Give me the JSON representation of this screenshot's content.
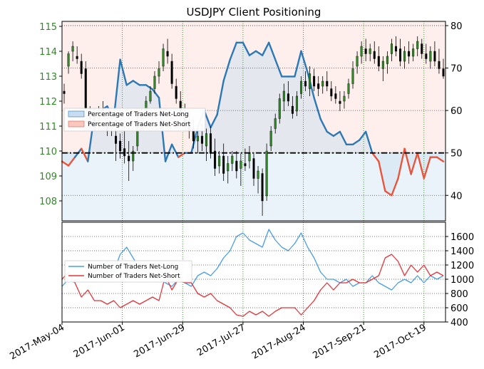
{
  "chart_data": [
    {
      "type": "line",
      "title": "USDJPY Client Positioning",
      "x_tick_labels": [
        "2017-May-04",
        "2017-Jun-01",
        "2017-Jun-29",
        "2017-Jul-27",
        "2017-Aug-24",
        "2017-Sep-21",
        "2017-Oct-19"
      ],
      "left_axis": {
        "ylim": [
          107.2,
          115.2
        ],
        "ticks": [
          108,
          109,
          110,
          111,
          112,
          113,
          114,
          115
        ],
        "color": "#2e8b22"
      },
      "right_axis": {
        "ylim": [
          34,
          81
        ],
        "ticks": [
          40,
          50,
          60,
          70,
          80
        ]
      },
      "reference_line": 50,
      "legend": {
        "placement": "center-left",
        "entries": [
          "Percentage of Traders Net-Long",
          "Percentage of Traders Net-Short"
        ]
      },
      "series_colors": {
        "net_long": "#2b78b5",
        "net_short": "#e8553b",
        "candle": "#000000"
      },
      "x": [
        0,
        3,
        6,
        9,
        12,
        15,
        18,
        21,
        24,
        27,
        30,
        33,
        36,
        39,
        42,
        45,
        48,
        51,
        54,
        57,
        60,
        63,
        66,
        69,
        72,
        75,
        78,
        81,
        84,
        87,
        90,
        93,
        96,
        99,
        102,
        105,
        108,
        111,
        114,
        117,
        120,
        123,
        126,
        129,
        132,
        135,
        138,
        141,
        144,
        147,
        150,
        153,
        156,
        159,
        162,
        165,
        168,
        171,
        174,
        177
      ],
      "percent_net_long": [
        48,
        47,
        49,
        51,
        48,
        59,
        60,
        61,
        58,
        72,
        66,
        67,
        66,
        66,
        65,
        63,
        48,
        52,
        49,
        50,
        50,
        56,
        60,
        56,
        59,
        67,
        72,
        76,
        76,
        73,
        74,
        73,
        76,
        72,
        68,
        68,
        68,
        74,
        69,
        63,
        58,
        55,
        54,
        55,
        52,
        52,
        53,
        55,
        50,
        48,
        41,
        40,
        44,
        51,
        45,
        50,
        44,
        49,
        49,
        48
      ],
      "candles": [
        {
          "x": 1,
          "o": 112.4,
          "h": 112.7,
          "l": 111.9,
          "c": 112.3
        },
        {
          "x": 3,
          "o": 113.4,
          "h": 114.0,
          "l": 113.1,
          "c": 113.9
        },
        {
          "x": 5,
          "o": 114.0,
          "h": 114.4,
          "l": 113.6,
          "c": 114.2
        },
        {
          "x": 7,
          "o": 113.8,
          "h": 114.2,
          "l": 113.5,
          "c": 113.7
        },
        {
          "x": 9,
          "o": 113.6,
          "h": 113.9,
          "l": 112.9,
          "c": 113.1
        },
        {
          "x": 11,
          "o": 113.3,
          "h": 113.6,
          "l": 111.6,
          "c": 111.7
        },
        {
          "x": 13,
          "o": 111.4,
          "h": 111.8,
          "l": 110.9,
          "c": 111.3
        },
        {
          "x": 15,
          "o": 111.3,
          "h": 111.7,
          "l": 110.8,
          "c": 111.0
        },
        {
          "x": 17,
          "o": 111.2,
          "h": 111.8,
          "l": 110.9,
          "c": 111.6
        },
        {
          "x": 19,
          "o": 111.7,
          "h": 112.0,
          "l": 111.4,
          "c": 111.6
        },
        {
          "x": 21,
          "o": 111.0,
          "h": 111.5,
          "l": 110.6,
          "c": 110.8
        },
        {
          "x": 23,
          "o": 110.9,
          "h": 111.4,
          "l": 110.6,
          "c": 111.0
        },
        {
          "x": 25,
          "o": 110.6,
          "h": 110.9,
          "l": 109.6,
          "c": 110.3
        },
        {
          "x": 27,
          "o": 110.4,
          "h": 110.7,
          "l": 109.7,
          "c": 110.0
        },
        {
          "x": 29,
          "o": 110.1,
          "h": 110.9,
          "l": 109.5,
          "c": 109.8
        },
        {
          "x": 31,
          "o": 109.8,
          "h": 110.4,
          "l": 108.8,
          "c": 109.6
        },
        {
          "x": 33,
          "o": 109.6,
          "h": 110.2,
          "l": 109.2,
          "c": 110.0
        },
        {
          "x": 35,
          "o": 110.2,
          "h": 111.5,
          "l": 110.0,
          "c": 111.2
        },
        {
          "x": 37,
          "o": 111.3,
          "h": 111.7,
          "l": 110.9,
          "c": 111.4
        },
        {
          "x": 39,
          "o": 111.5,
          "h": 112.2,
          "l": 111.3,
          "c": 112.0
        },
        {
          "x": 41,
          "o": 112.0,
          "h": 112.6,
          "l": 111.9,
          "c": 112.4
        },
        {
          "x": 43,
          "o": 112.5,
          "h": 113.2,
          "l": 112.3,
          "c": 113.0
        },
        {
          "x": 45,
          "o": 113.0,
          "h": 113.6,
          "l": 112.7,
          "c": 113.3
        },
        {
          "x": 47,
          "o": 113.4,
          "h": 114.3,
          "l": 113.2,
          "c": 114.1
        },
        {
          "x": 49,
          "o": 114.0,
          "h": 114.5,
          "l": 113.5,
          "c": 113.8
        },
        {
          "x": 51,
          "o": 113.6,
          "h": 113.9,
          "l": 112.5,
          "c": 112.7
        },
        {
          "x": 53,
          "o": 112.6,
          "h": 112.9,
          "l": 111.9,
          "c": 112.1
        },
        {
          "x": 55,
          "o": 112.0,
          "h": 112.4,
          "l": 111.2,
          "c": 111.4
        },
        {
          "x": 57,
          "o": 111.5,
          "h": 111.9,
          "l": 110.8,
          "c": 111.0
        },
        {
          "x": 59,
          "o": 111.1,
          "h": 111.6,
          "l": 110.5,
          "c": 110.8
        },
        {
          "x": 61,
          "o": 110.9,
          "h": 111.3,
          "l": 110.1,
          "c": 110.4
        },
        {
          "x": 63,
          "o": 110.4,
          "h": 110.9,
          "l": 109.9,
          "c": 110.6
        },
        {
          "x": 65,
          "o": 110.6,
          "h": 111.1,
          "l": 110.0,
          "c": 110.3
        },
        {
          "x": 67,
          "o": 110.2,
          "h": 110.9,
          "l": 109.6,
          "c": 110.7
        },
        {
          "x": 69,
          "o": 110.7,
          "h": 111.0,
          "l": 109.7,
          "c": 109.9
        },
        {
          "x": 71,
          "o": 110.0,
          "h": 110.5,
          "l": 109.0,
          "c": 109.3
        },
        {
          "x": 73,
          "o": 109.4,
          "h": 110.0,
          "l": 109.1,
          "c": 109.8
        },
        {
          "x": 75,
          "o": 109.8,
          "h": 110.3,
          "l": 108.8,
          "c": 109.1
        },
        {
          "x": 77,
          "o": 109.2,
          "h": 109.8,
          "l": 108.7,
          "c": 109.5
        },
        {
          "x": 79,
          "o": 109.5,
          "h": 110.0,
          "l": 109.2,
          "c": 109.8
        },
        {
          "x": 81,
          "o": 109.6,
          "h": 110.0,
          "l": 108.9,
          "c": 109.2
        },
        {
          "x": 83,
          "o": 109.3,
          "h": 109.9,
          "l": 108.6,
          "c": 109.6
        },
        {
          "x": 85,
          "o": 109.5,
          "h": 110.1,
          "l": 109.2,
          "c": 109.4
        },
        {
          "x": 87,
          "o": 109.6,
          "h": 110.2,
          "l": 109.3,
          "c": 109.9
        },
        {
          "x": 89,
          "o": 109.7,
          "h": 109.9,
          "l": 108.6,
          "c": 108.9
        },
        {
          "x": 91,
          "o": 108.9,
          "h": 109.4,
          "l": 108.3,
          "c": 109.2
        },
        {
          "x": 93,
          "o": 109.1,
          "h": 109.3,
          "l": 107.4,
          "c": 108.0
        },
        {
          "x": 95,
          "o": 108.2,
          "h": 110.3,
          "l": 108.0,
          "c": 110.0
        },
        {
          "x": 97,
          "o": 110.2,
          "h": 111.0,
          "l": 110.0,
          "c": 110.8
        },
        {
          "x": 99,
          "o": 110.9,
          "h": 111.5,
          "l": 110.7,
          "c": 111.3
        },
        {
          "x": 101,
          "o": 111.3,
          "h": 112.3,
          "l": 111.1,
          "c": 112.1
        },
        {
          "x": 103,
          "o": 112.0,
          "h": 112.7,
          "l": 111.6,
          "c": 112.4
        },
        {
          "x": 105,
          "o": 112.3,
          "h": 112.8,
          "l": 111.8,
          "c": 112.0
        },
        {
          "x": 107,
          "o": 111.8,
          "h": 112.2,
          "l": 111.3,
          "c": 111.5
        },
        {
          "x": 109,
          "o": 111.6,
          "h": 112.4,
          "l": 111.4,
          "c": 112.2
        },
        {
          "x": 111,
          "o": 112.3,
          "h": 113.0,
          "l": 112.1,
          "c": 112.8
        },
        {
          "x": 113,
          "o": 112.8,
          "h": 113.2,
          "l": 112.4,
          "c": 112.6
        },
        {
          "x": 115,
          "o": 112.5,
          "h": 113.4,
          "l": 112.2,
          "c": 113.1
        },
        {
          "x": 117,
          "o": 113.0,
          "h": 113.3,
          "l": 112.4,
          "c": 112.6
        },
        {
          "x": 119,
          "o": 112.7,
          "h": 113.0,
          "l": 112.2,
          "c": 112.5
        },
        {
          "x": 121,
          "o": 112.6,
          "h": 113.0,
          "l": 112.3,
          "c": 112.8
        },
        {
          "x": 123,
          "o": 112.8,
          "h": 113.2,
          "l": 112.4,
          "c": 112.6
        },
        {
          "x": 125,
          "o": 112.5,
          "h": 112.8,
          "l": 112.0,
          "c": 112.2
        },
        {
          "x": 127,
          "o": 112.3,
          "h": 112.6,
          "l": 111.9,
          "c": 112.1
        },
        {
          "x": 129,
          "o": 112.0,
          "h": 112.4,
          "l": 111.6,
          "c": 111.9
        },
        {
          "x": 131,
          "o": 112.0,
          "h": 112.4,
          "l": 111.7,
          "c": 112.2
        },
        {
          "x": 133,
          "o": 112.3,
          "h": 112.9,
          "l": 112.1,
          "c": 112.7
        },
        {
          "x": 135,
          "o": 112.7,
          "h": 113.6,
          "l": 112.5,
          "c": 113.3
        },
        {
          "x": 137,
          "o": 113.4,
          "h": 114.0,
          "l": 113.1,
          "c": 113.8
        },
        {
          "x": 139,
          "o": 113.8,
          "h": 114.4,
          "l": 113.5,
          "c": 114.2
        },
        {
          "x": 141,
          "o": 114.1,
          "h": 114.5,
          "l": 113.6,
          "c": 113.9
        },
        {
          "x": 143,
          "o": 113.9,
          "h": 114.3,
          "l": 113.6,
          "c": 114.1
        },
        {
          "x": 145,
          "o": 114.0,
          "h": 114.4,
          "l": 113.5,
          "c": 113.7
        },
        {
          "x": 147,
          "o": 113.8,
          "h": 114.2,
          "l": 113.2,
          "c": 113.4
        },
        {
          "x": 149,
          "o": 113.3,
          "h": 113.8,
          "l": 112.8,
          "c": 113.6
        },
        {
          "x": 151,
          "o": 113.5,
          "h": 114.0,
          "l": 113.1,
          "c": 113.8
        },
        {
          "x": 153,
          "o": 113.9,
          "h": 114.5,
          "l": 113.6,
          "c": 114.3
        },
        {
          "x": 155,
          "o": 114.2,
          "h": 114.6,
          "l": 113.8,
          "c": 114.0
        },
        {
          "x": 157,
          "o": 114.1,
          "h": 114.5,
          "l": 113.4,
          "c": 113.6
        },
        {
          "x": 159,
          "o": 113.6,
          "h": 114.2,
          "l": 113.3,
          "c": 114.0
        },
        {
          "x": 161,
          "o": 114.0,
          "h": 114.4,
          "l": 113.5,
          "c": 113.8
        },
        {
          "x": 163,
          "o": 113.8,
          "h": 114.3,
          "l": 113.6,
          "c": 114.1
        },
        {
          "x": 165,
          "o": 114.1,
          "h": 114.6,
          "l": 113.8,
          "c": 114.4
        },
        {
          "x": 167,
          "o": 114.3,
          "h": 114.5,
          "l": 113.7,
          "c": 113.9
        },
        {
          "x": 169,
          "o": 113.9,
          "h": 114.3,
          "l": 113.5,
          "c": 113.7
        },
        {
          "x": 171,
          "o": 113.6,
          "h": 114.2,
          "l": 113.3,
          "c": 114.0
        },
        {
          "x": 173,
          "o": 114.0,
          "h": 114.4,
          "l": 113.4,
          "c": 113.6
        },
        {
          "x": 175,
          "o": 113.6,
          "h": 114.1,
          "l": 113.1,
          "c": 113.3
        },
        {
          "x": 177,
          "o": 113.3,
          "h": 113.7,
          "l": 112.9,
          "c": 113.0
        }
      ]
    },
    {
      "type": "line",
      "ylim": [
        400,
        1800
      ],
      "yticks": [
        400,
        600,
        800,
        1000,
        1200,
        1400,
        1600
      ],
      "legend": {
        "placement": "left",
        "entries": [
          "Number of Traders Net-Long",
          "Number of Traders Net-Short"
        ]
      },
      "series": [
        {
          "name": "Number of Traders Net-Long",
          "color": "#4a9de6",
          "values": [
            900,
            1000,
            950,
            1050,
            1000,
            1100,
            1200,
            1250,
            1100,
            1350,
            1450,
            1300,
            1150,
            1100,
            1050,
            1000,
            950,
            900,
            1000,
            950,
            900,
            1050,
            1100,
            1050,
            1150,
            1300,
            1400,
            1600,
            1650,
            1550,
            1500,
            1450,
            1700,
            1550,
            1450,
            1400,
            1500,
            1650,
            1450,
            1300,
            1100,
            1000,
            1000,
            950,
            1000,
            900,
            950,
            950,
            1050,
            950,
            900,
            850,
            950,
            1000,
            950,
            1050,
            950,
            1050,
            1000,
            1050
          ]
        },
        {
          "name": "Number of Traders Net-Short",
          "color": "#e8333a",
          "values": [
            1000,
            1100,
            950,
            750,
            850,
            700,
            700,
            650,
            700,
            600,
            650,
            700,
            650,
            700,
            750,
            700,
            1050,
            850,
            1000,
            950,
            950,
            800,
            750,
            800,
            700,
            650,
            600,
            500,
            480,
            550,
            500,
            550,
            480,
            550,
            600,
            600,
            600,
            500,
            600,
            700,
            850,
            950,
            850,
            950,
            950,
            1000,
            950,
            950,
            1000,
            1050,
            1300,
            1350,
            1250,
            1050,
            1200,
            1100,
            1200,
            1050,
            1100,
            1050
          ]
        }
      ]
    }
  ]
}
